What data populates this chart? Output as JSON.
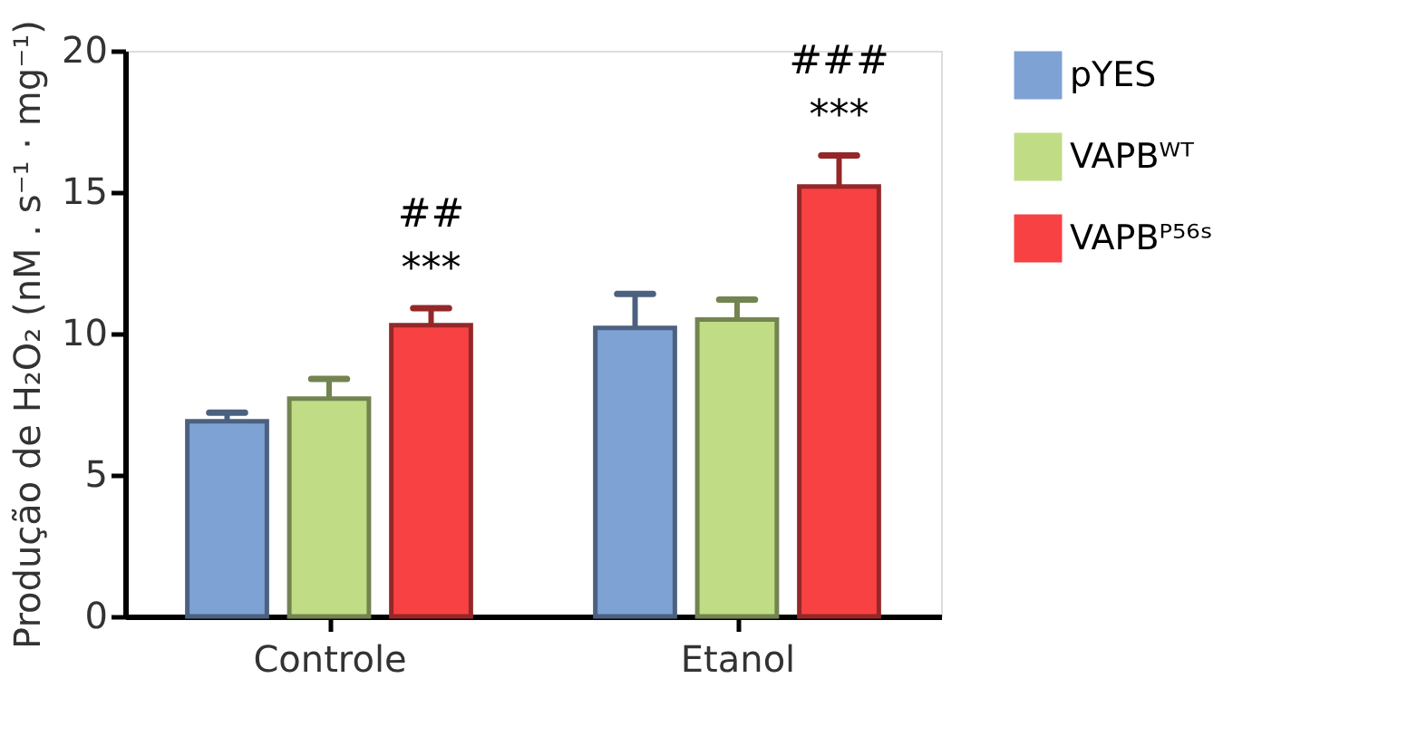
{
  "chart_data": {
    "type": "bar",
    "ylabel": "Produção de H₂O₂ (nM . s⁻¹ · mg⁻¹)",
    "categories": [
      "Controle",
      "Etanol"
    ],
    "series": [
      {
        "name": "pYES",
        "color": "#7ea2d4",
        "values": [
          6.9,
          10.2
        ],
        "errors": [
          0.3,
          1.2
        ]
      },
      {
        "name": "VAPBᵂᵀ",
        "color": "#c0dd86",
        "values": [
          7.7,
          10.5
        ],
        "errors": [
          0.7,
          0.7
        ]
      },
      {
        "name": "VAPBᴾ⁵⁶ˢ",
        "color": "#f84143",
        "values": [
          10.3,
          15.2
        ],
        "errors": [
          0.6,
          1.1
        ]
      }
    ],
    "ylim": [
      0,
      20
    ],
    "yticks": [
      0,
      5,
      10,
      15,
      20
    ],
    "grid": false,
    "legend": "top right",
    "annotations": [
      "##",
      "***",
      "###",
      "***"
    ]
  }
}
